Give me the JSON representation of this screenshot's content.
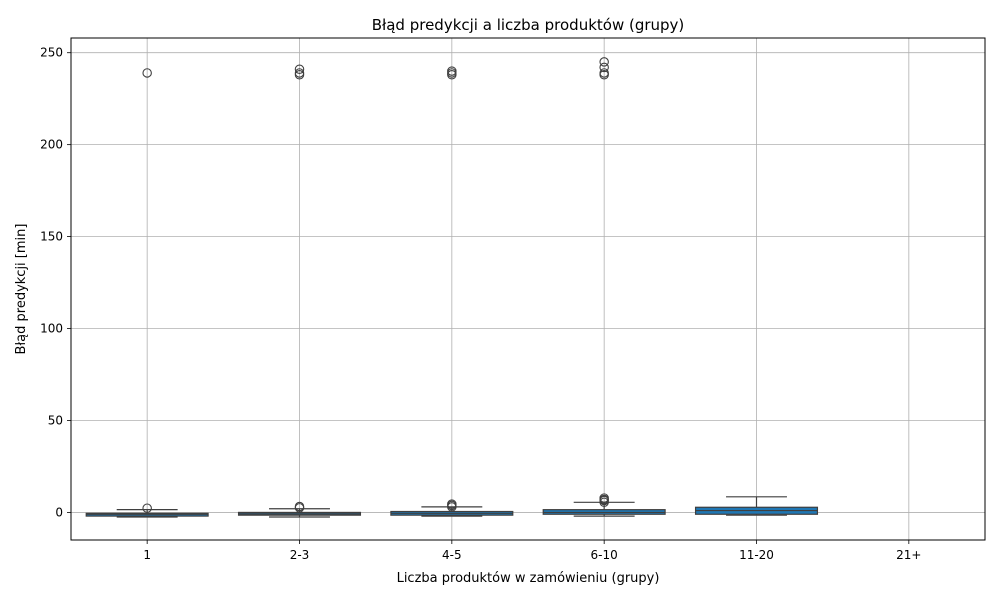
{
  "chart_data": {
    "type": "box",
    "title": "Błąd predykcji a liczba produktów (grupy)",
    "xlabel": "Liczba produktów w zamówieniu (grupy)",
    "ylabel": "Błąd predykcji [min]",
    "ylim": [
      -15,
      258
    ],
    "yticks": [
      0,
      50,
      100,
      150,
      200,
      250
    ],
    "ytick_labels": [
      "0",
      "50",
      "100",
      "150",
      "200",
      "250"
    ],
    "grid": true,
    "box_color": "#1f77b4",
    "categories": [
      "1",
      "2-3",
      "4-5",
      "6-10",
      "11-20",
      "21+"
    ],
    "boxes": [
      {
        "category": "1",
        "whislo": -2.5,
        "q1": -2.0,
        "med": -1.0,
        "q3": -0.5,
        "whishi": 1.5,
        "fliers": [
          2.3,
          239
        ]
      },
      {
        "category": "2-3",
        "whislo": -2.5,
        "q1": -1.5,
        "med": -0.8,
        "q3": 0.0,
        "whishi": 2.0,
        "fliers": [
          2.5,
          3.2,
          238,
          239,
          241
        ]
      },
      {
        "category": "4-5",
        "whislo": -2.0,
        "q1": -1.5,
        "med": -0.5,
        "q3": 0.5,
        "whishi": 3.0,
        "fliers": [
          3.0,
          3.8,
          4.5,
          238,
          239,
          240
        ]
      },
      {
        "category": "6-10",
        "whislo": -2.0,
        "q1": -1.0,
        "med": 0.0,
        "q3": 1.5,
        "whishi": 5.5,
        "fliers": [
          5.5,
          6.5,
          7.0,
          7.8,
          238,
          239,
          242,
          245
        ]
      },
      {
        "category": "11-20",
        "whislo": -1.5,
        "q1": -1.0,
        "med": 1.0,
        "q3": 2.8,
        "whishi": 8.5,
        "fliers": []
      },
      {
        "category": "21+",
        "whislo": null,
        "q1": null,
        "med": null,
        "q3": null,
        "whishi": null,
        "fliers": []
      }
    ]
  }
}
